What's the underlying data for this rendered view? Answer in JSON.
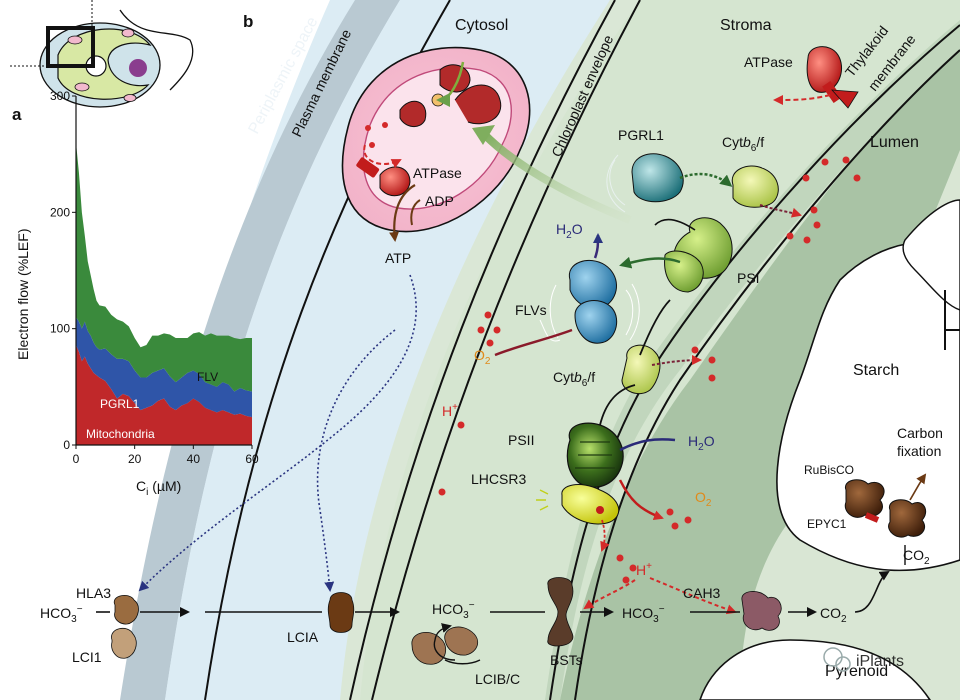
{
  "panel_a": {
    "letter": "a",
    "ylabel": "Electron flow (%LEF)",
    "xlabel_main": "C",
    "xlabel_sub": "i",
    "xlabel_unit": " (µM)",
    "series_labels": {
      "flv": "FLV",
      "pgrl1": "PGRL1",
      "mito": "Mitochondria"
    },
    "colors": {
      "flv": "#3a8a3c",
      "pgrl1": "#2f55a8",
      "mito": "#c0282a"
    }
  },
  "chart_data": {
    "type": "area",
    "stacked": true,
    "x": [
      0,
      1,
      2,
      3,
      4,
      5,
      6,
      7,
      8,
      10,
      12,
      14,
      16,
      18,
      20,
      22,
      24,
      26,
      28,
      30,
      32,
      34,
      36,
      38,
      40,
      42,
      44,
      46,
      48,
      50,
      52,
      54,
      56,
      58,
      60
    ],
    "xlabel": "Ci (µM)",
    "ylabel": "Electron flow (%LEF)",
    "xlim": [
      0,
      60
    ],
    "ylim": [
      0,
      300
    ],
    "xticks": [
      0,
      20,
      40,
      60
    ],
    "yticks": [
      0,
      100,
      200,
      300
    ],
    "series": [
      {
        "name": "Mitochondria",
        "values": [
          86,
          80,
          72,
          76,
          70,
          66,
          62,
          60,
          58,
          55,
          48,
          40,
          44,
          42,
          36,
          30,
          32,
          34,
          38,
          40,
          33,
          30,
          34,
          36,
          40,
          37,
          32,
          30,
          28,
          30,
          28,
          26,
          27,
          25,
          24
        ]
      },
      {
        "name": "PGRL1",
        "values": [
          24,
          26,
          28,
          30,
          28,
          28,
          26,
          24,
          24,
          28,
          30,
          34,
          30,
          30,
          28,
          28,
          26,
          28,
          26,
          26,
          26,
          24,
          24,
          26,
          24,
          24,
          22,
          22,
          22,
          24,
          24,
          20,
          22,
          22,
          22
        ]
      },
      {
        "name": "FLV",
        "values": [
          150,
          128,
          100,
          74,
          60,
          52,
          46,
          40,
          38,
          36,
          34,
          34,
          32,
          30,
          28,
          26,
          28,
          32,
          30,
          30,
          36,
          38,
          34,
          30,
          32,
          36,
          40,
          44,
          44,
          40,
          42,
          46,
          42,
          45,
          46
        ]
      }
    ]
  },
  "panel_b": {
    "letter": "b",
    "regions": {
      "periplasmic": "Periplasmic space",
      "plasma_membrane": "Plasma membrane",
      "cytosol": "Cytosol",
      "chloroplast_envelope": "Chloroplast envelope",
      "stroma": "Stroma",
      "thylakoid_line1": "Thylakoid",
      "thylakoid_line2": "membrane",
      "lumen": "Lumen",
      "starch": "Starch",
      "pyrenoid": "Pyrenoid"
    },
    "mito": {
      "atpase": "ATPase",
      "adp": "ADP",
      "atp": "ATP"
    },
    "proteins": {
      "atpase": "ATPase",
      "pgrl1": "PGRL1",
      "cyt_top_main": "Cyt",
      "cyt_top_italic": "b",
      "cyt_top_sub": "6",
      "cyt_top_end": "/f",
      "cyt_mid_main": "Cyt",
      "cyt_mid_italic": "b",
      "cyt_mid_sub": "6",
      "cyt_mid_end": "/f",
      "psi": "PSI",
      "psii": "PSII",
      "flvs": "FLVs",
      "lhcsr3": "LHCSR3",
      "rubisco": "RuBisCO",
      "epyc1": "EPYC1",
      "carbon_fix_1": "Carbon",
      "carbon_fix_2": "fixation",
      "hla3": "HLA3",
      "lci1": "LCI1",
      "lcia": "LCIA",
      "lcibc": "LCIB/C",
      "bsts": "BSTs",
      "cah3": "CAH3"
    },
    "chem": {
      "h2o_top": "H",
      "h2o_top_sub": "2",
      "h2o_top_end": "O",
      "h2o_psii": "H",
      "h2o_psii_sub": "2",
      "h2o_psii_end": "O",
      "o2_left": "O",
      "o2_left_sub": "2",
      "o2_right": "O",
      "o2_right_sub": "2",
      "hplus_left": "H",
      "hplus_left_sup": "+",
      "hplus_right": "H",
      "hplus_right_sup": "+",
      "hco3_left": "HCO",
      "hco3_left_sub": "3",
      "hco3_left_sup": "−",
      "hco3_mid": "HCO",
      "hco3_mid_sub": "3",
      "hco3_mid_sup": "−",
      "hco3_right": "HCO",
      "hco3_right_sub": "3",
      "hco3_right_sup": "−",
      "co2_pyr": "CO",
      "co2_pyr_sub": "2",
      "co2_fix": "CO",
      "co2_fix_sub": "2"
    },
    "watermark": "iPlants"
  }
}
